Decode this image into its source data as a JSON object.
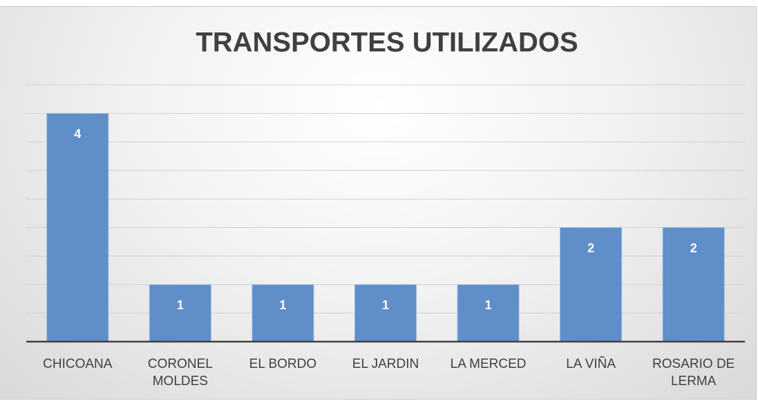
{
  "chart_data": {
    "type": "bar",
    "title": "TRANSPORTES UTILIZADOS",
    "categories": [
      "CHICOANA",
      "CORONEL MOLDES",
      "EL BORDO",
      "EL JARDIN",
      "LA MERCED",
      "LA VIÑA",
      "ROSARIO DE LERMA"
    ],
    "values": [
      4,
      1,
      1,
      1,
      1,
      2,
      2
    ],
    "color": "#5f8ec9",
    "ylim": [
      0,
      4.5
    ],
    "yticks": [
      0,
      0.5,
      1,
      1.5,
      2,
      2.5,
      3,
      3.5,
      4,
      4.5
    ],
    "grid": true
  }
}
